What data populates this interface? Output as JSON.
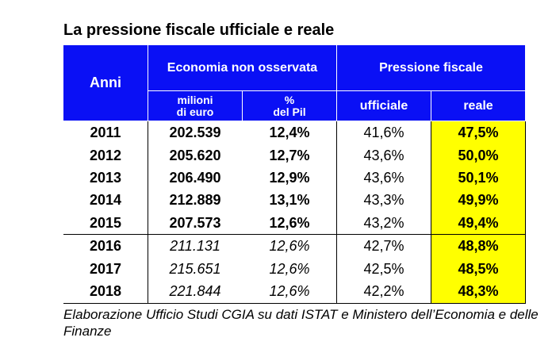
{
  "title": "La pressione fiscale ufficiale e reale",
  "header": {
    "anni": "Anni",
    "economia": "Economia non osservata",
    "pressione": "Pressione fiscale",
    "milioni_1": "milioni",
    "milioni_2": "di euro",
    "pil_1": "%",
    "pil_2": "del Pil",
    "ufficiale": "ufficiale",
    "reale": "reale"
  },
  "rows": [
    {
      "anno": "2011",
      "milioni": "202.539",
      "pil": "12,4%",
      "ufficiale": "41,6%",
      "reale": "47,5%"
    },
    {
      "anno": "2012",
      "milioni": "205.620",
      "pil": "12,7%",
      "ufficiale": "43,6%",
      "reale": "50,0%"
    },
    {
      "anno": "2013",
      "milioni": "206.490",
      "pil": "12,9%",
      "ufficiale": "43,6%",
      "reale": "50,1%"
    },
    {
      "anno": "2014",
      "milioni": "212.889",
      "pil": "13,1%",
      "ufficiale": "43,3%",
      "reale": "49,9%"
    },
    {
      "anno": "2015",
      "milioni": "207.573",
      "pil": "12,6%",
      "ufficiale": "43,2%",
      "reale": "49,4%"
    },
    {
      "anno": "2016",
      "milioni": "211.131",
      "pil": "12,6%",
      "ufficiale": "42,7%",
      "reale": "48,8%"
    },
    {
      "anno": "2017",
      "milioni": "215.651",
      "pil": "12,6%",
      "ufficiale": "42,5%",
      "reale": "48,5%"
    },
    {
      "anno": "2018",
      "milioni": "221.844",
      "pil": "12,6%",
      "ufficiale": "42,2%",
      "reale": "48,3%"
    }
  ],
  "footnote": "Elaborazione Ufficio Studi CGIA su dati ISTAT e Ministero dell’Economia e delle Finanze",
  "colors": {
    "header_bg": "#0a10f5",
    "highlight": "#ffff00"
  }
}
